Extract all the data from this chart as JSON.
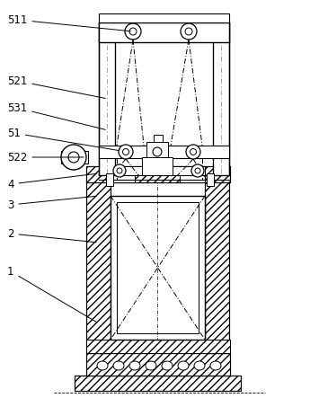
{
  "bg_color": "#ffffff",
  "figsize": [
    3.45,
    4.43
  ],
  "dpi": 100,
  "labels": [
    "511",
    "521",
    "531",
    "51",
    "522",
    "4",
    "3",
    "2",
    "1"
  ]
}
